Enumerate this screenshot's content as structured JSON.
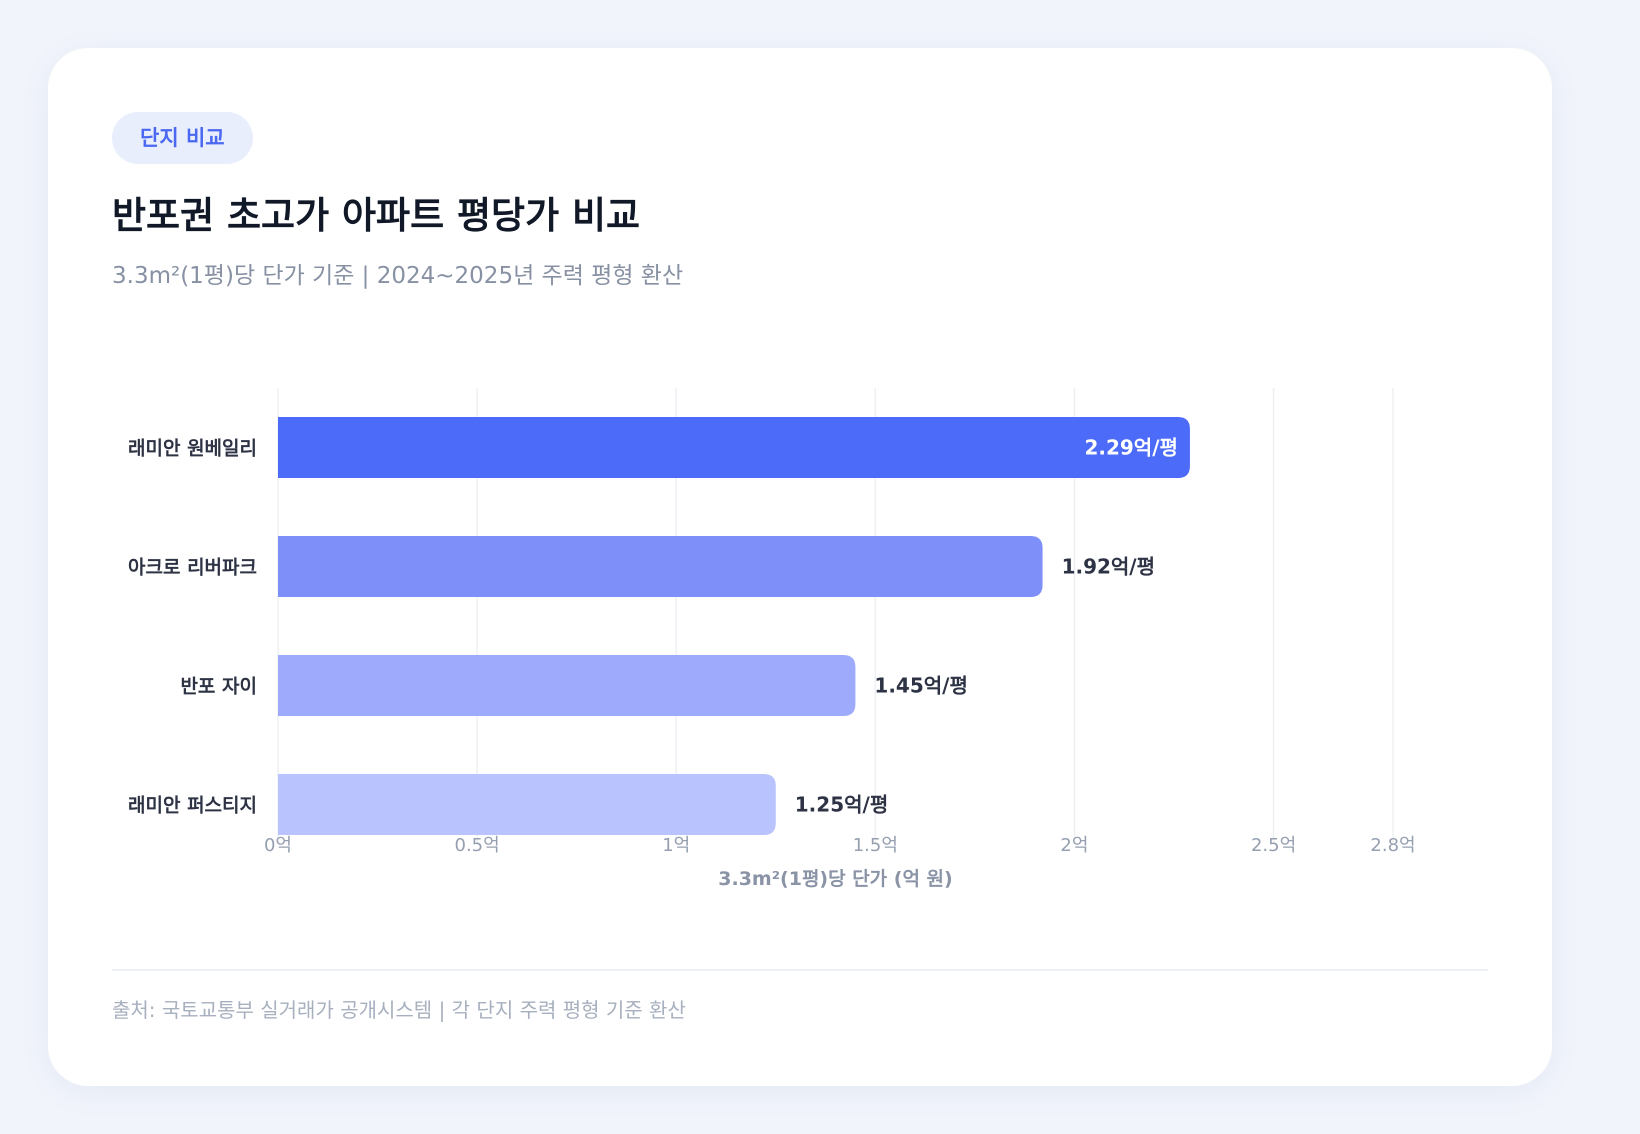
{
  "header": {
    "tag": "단지 비교",
    "title": "반포권 초고가 아파트 평당가 비교",
    "subtitle": "3.3m²(1평)당 단가 기준 | 2024~2025년 주력 평형 환산"
  },
  "footer": {
    "source": "출처: 국토교통부 실거래가 공개시스템 | 각 단지 주력 평형 기준 환산"
  },
  "chart_data": {
    "type": "bar",
    "orientation": "horizontal",
    "categories": [
      "래미안 원베일리",
      "아크로 리버파크",
      "반포 자이",
      "래미안 퍼스티지"
    ],
    "values": [
      2.29,
      1.92,
      1.45,
      1.25
    ],
    "value_labels": [
      "2.29억/평",
      "1.92억/평",
      "1.45억/평",
      "1.25억/평"
    ],
    "bar_colors": [
      "#4b6bf8",
      "#7f8ff9",
      "#9eaafb",
      "#b9c3fd"
    ],
    "xlabel": "3.3m²(1평)당 단가 (억 원)",
    "xlim": [
      0,
      2.8
    ],
    "xticks": [
      0,
      0.5,
      1,
      1.5,
      2,
      2.5,
      2.8
    ],
    "xtick_labels": [
      "0억",
      "0.5억",
      "1억",
      "1.5억",
      "2억",
      "2.5억",
      "2.8억"
    ],
    "grid": true,
    "label_colors": {
      "inside": "#ffffff",
      "outside": "#2d3344"
    }
  }
}
